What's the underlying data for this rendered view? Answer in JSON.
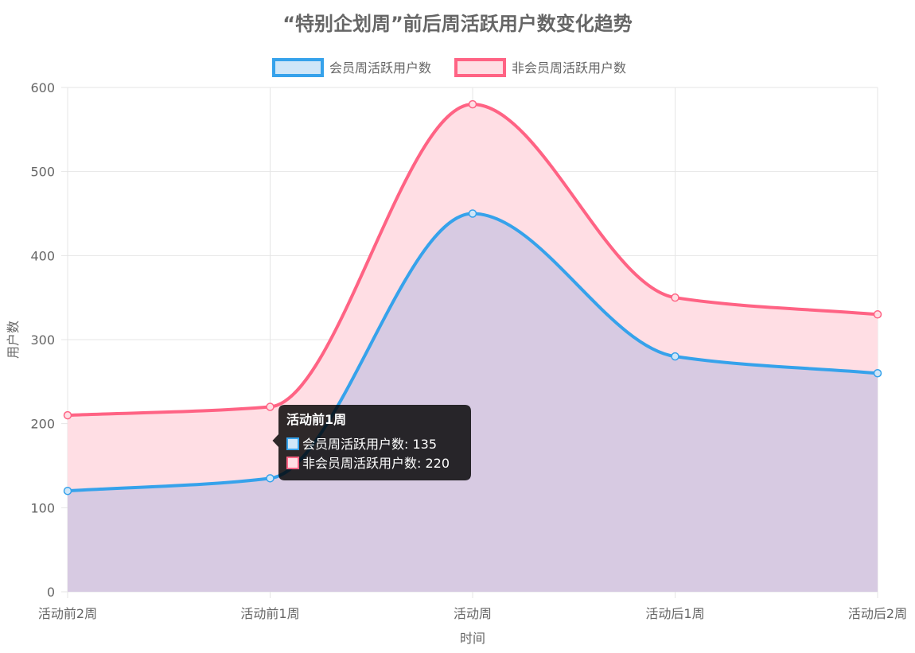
{
  "chart_data": {
    "type": "area",
    "title": "“特别企划周”前后周活跃用户数变化趋势",
    "xlabel": "时间",
    "ylabel": "用户数",
    "categories": [
      "活动前2周",
      "活动前1周",
      "活动周",
      "活动后1周",
      "活动后2周"
    ],
    "ylim": [
      0,
      600
    ],
    "yticks": [
      0,
      100,
      200,
      300,
      400,
      500,
      600
    ],
    "grid": true,
    "legend_position": "top",
    "stacked": false,
    "series": [
      {
        "name": "会员周活跃用户数",
        "values": [
          120,
          135,
          450,
          280,
          260
        ],
        "color": "#36a2eb",
        "fill": "#cfe6f8"
      },
      {
        "name": "非会员周活跃用户数",
        "values": [
          210,
          220,
          580,
          350,
          330
        ],
        "color": "#ff6384",
        "fill": "#ffdee4"
      }
    ],
    "tooltip": {
      "title": "活动前1周",
      "category_index": 1,
      "items": [
        "会员周活跃用户数: 135",
        "非会员周活跃用户数: 220"
      ]
    }
  }
}
